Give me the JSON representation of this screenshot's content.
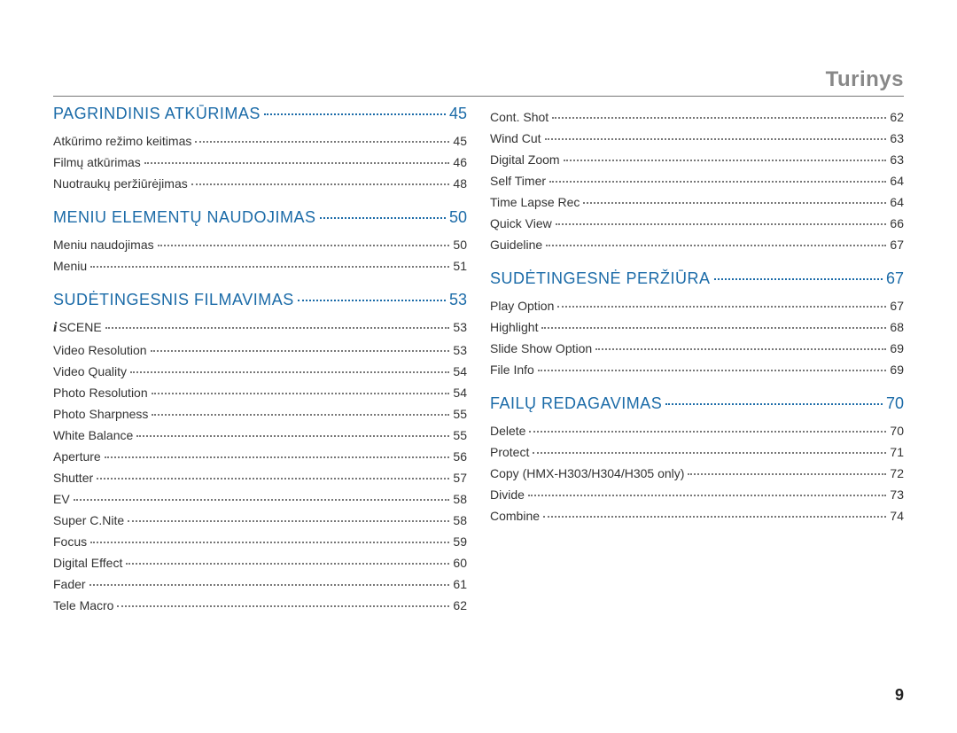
{
  "header_title": "Turinys",
  "footer_page": "9",
  "colors": {
    "accent": "#1b6ba8",
    "header_text": "#888888",
    "body_text": "#333333",
    "rule": "#777777",
    "dots": "#777777",
    "background": "#ffffff"
  },
  "typography": {
    "section_fontsize_pt": 14,
    "item_fontsize_pt": 10,
    "header_fontsize_pt": 18
  },
  "columns": [
    {
      "sections": [
        {
          "title": "PAGRINDINIS ATKŪRIMAS",
          "page": "45",
          "first": true,
          "items": [
            {
              "label": "Atkūrimo režimo keitimas",
              "page": "45"
            },
            {
              "label": "Filmų atkūrimas",
              "page": "46"
            },
            {
              "label": "Nuotraukų peržiūrėjimas",
              "page": "48"
            }
          ]
        },
        {
          "title": "MENIU ELEMENTŲ NAUDOJIMAS",
          "page": "50",
          "items": [
            {
              "label": "Meniu naudojimas",
              "page": "50"
            },
            {
              "label": "Meniu",
              "page": "51"
            }
          ]
        },
        {
          "title": "SUDĖTINGESNIS FILMAVIMAS",
          "page": "53",
          "items": [
            {
              "label": "SCENE",
              "page": "53",
              "scene_prefix": true
            },
            {
              "label": "Video Resolution",
              "page": "53"
            },
            {
              "label": "Video Quality",
              "page": "54"
            },
            {
              "label": "Photo Resolution",
              "page": "54"
            },
            {
              "label": "Photo Sharpness",
              "page": "55"
            },
            {
              "label": "White Balance",
              "page": "55"
            },
            {
              "label": "Aperture",
              "page": "56"
            },
            {
              "label": "Shutter",
              "page": "57"
            },
            {
              "label": "EV",
              "page": "58"
            },
            {
              "label": "Super C.Nite",
              "page": "58"
            },
            {
              "label": "Focus",
              "page": "59"
            },
            {
              "label": "Digital Effect",
              "page": "60"
            },
            {
              "label": "Fader",
              "page": "61"
            },
            {
              "label": "Tele Macro",
              "page": "62"
            }
          ]
        }
      ]
    },
    {
      "sections": [
        {
          "continuation": true,
          "items": [
            {
              "label": "Cont. Shot",
              "page": "62"
            },
            {
              "label": "Wind Cut",
              "page": "63"
            },
            {
              "label": "Digital Zoom",
              "page": "63"
            },
            {
              "label": "Self Timer",
              "page": "64"
            },
            {
              "label": "Time Lapse Rec",
              "page": "64"
            },
            {
              "label": "Quick View",
              "page": "66"
            },
            {
              "label": "Guideline",
              "page": "67"
            }
          ]
        },
        {
          "title": "SUDĖTINGESNĖ PERŽIŪRA",
          "page": "67",
          "items": [
            {
              "label": "Play Option",
              "page": "67"
            },
            {
              "label": "Highlight",
              "page": "68"
            },
            {
              "label": "Slide Show Option",
              "page": "69"
            },
            {
              "label": "File Info",
              "page": "69"
            }
          ]
        },
        {
          "title": "FAILŲ REDAGAVIMAS",
          "page": "70",
          "items": [
            {
              "label": "Delete",
              "page": "70"
            },
            {
              "label": "Protect",
              "page": "71"
            },
            {
              "label": "Copy (HMX-H303/H304/H305 only)",
              "page": "72"
            },
            {
              "label": "Divide",
              "page": "73"
            },
            {
              "label": "Combine",
              "page": "74"
            }
          ]
        }
      ]
    }
  ]
}
